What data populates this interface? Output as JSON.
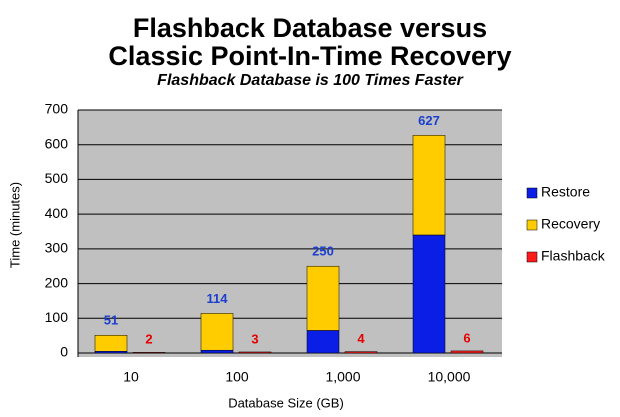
{
  "chart_data": {
    "type": "bar",
    "title": "Flashback Database versus",
    "title_line2": "Classic Point-In-Time Recovery",
    "subtitle": "Flashback Database is 100 Times Faster",
    "x_label": "Database Size (GB)",
    "y_label": "Time (minutes)",
    "categories": [
      "10",
      "100",
      "1,000",
      "10,000"
    ],
    "series": [
      {
        "name": "Restore",
        "color": "#0a1ee6",
        "stack": 1,
        "values": [
          5,
          8,
          65,
          340
        ]
      },
      {
        "name": "Recovery",
        "color": "#ffcc00",
        "stack": 1,
        "values": [
          46,
          106,
          185,
          287
        ]
      },
      {
        "name": "Flashback",
        "color": "#ff1a1a",
        "stack": 2,
        "values": [
          2,
          3,
          4,
          6
        ]
      }
    ],
    "total_labels": [
      51,
      114,
      250,
      627
    ],
    "ylim": [
      0,
      700
    ],
    "yticks": [
      0,
      100,
      200,
      300,
      400,
      500,
      600,
      700
    ],
    "grid": true,
    "legend": "right"
  }
}
